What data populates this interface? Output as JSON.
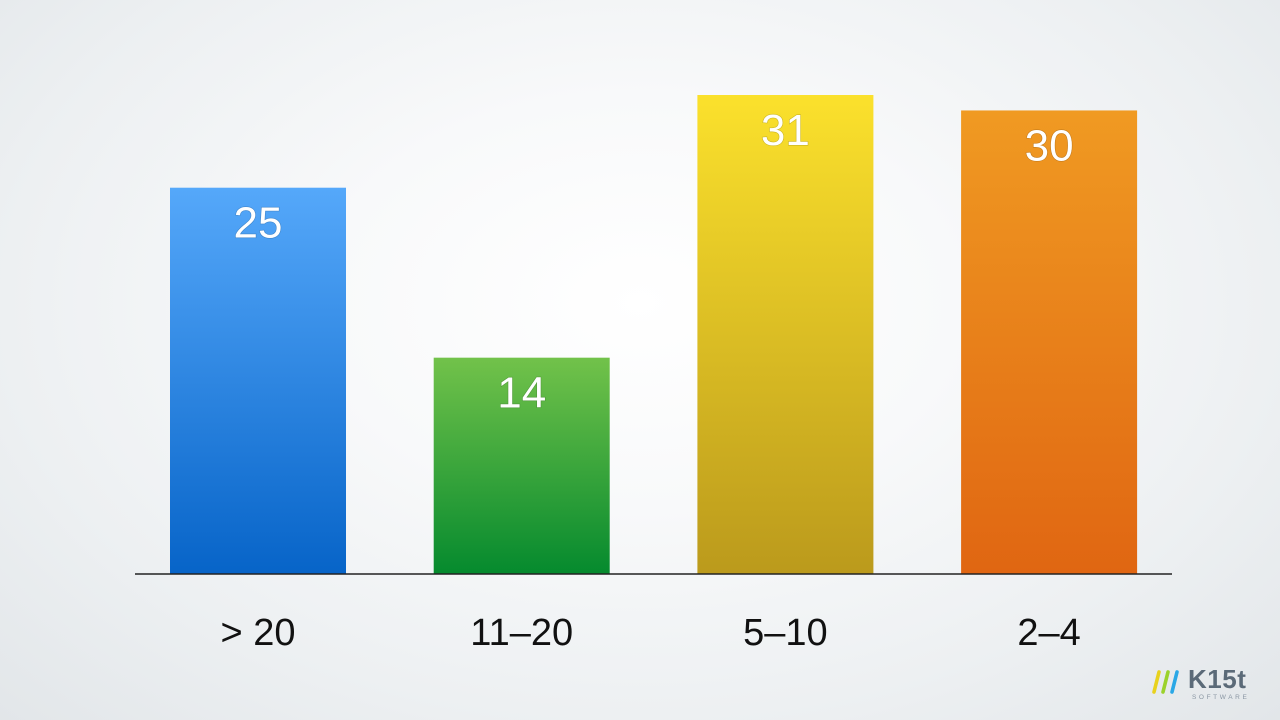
{
  "chart_data": {
    "type": "bar",
    "categories": [
      "> 20",
      "11–20",
      "5–10",
      "2–4"
    ],
    "values": [
      25,
      14,
      31,
      30
    ],
    "value_labels": [
      "25",
      "14",
      "31",
      "30"
    ],
    "ylim": [
      0,
      31
    ],
    "grid": false,
    "legend": "none",
    "title": "",
    "xlabel": "",
    "ylabel": "",
    "bar_colors": [
      {
        "top": "#55a8fa",
        "bottom": "#0764c8"
      },
      {
        "top": "#72c24a",
        "bottom": "#058a2e"
      },
      {
        "top": "#fbe12c",
        "bottom": "#bb9a1c"
      },
      {
        "top": "#f09a22",
        "bottom": "#e06612"
      }
    ],
    "axis_color": "#222222"
  },
  "logo": {
    "name": "K15t",
    "tagline": "SOFTWARE",
    "slash_colors": [
      "#e8d21e",
      "#9bd22c",
      "#2aa8e6"
    ]
  }
}
